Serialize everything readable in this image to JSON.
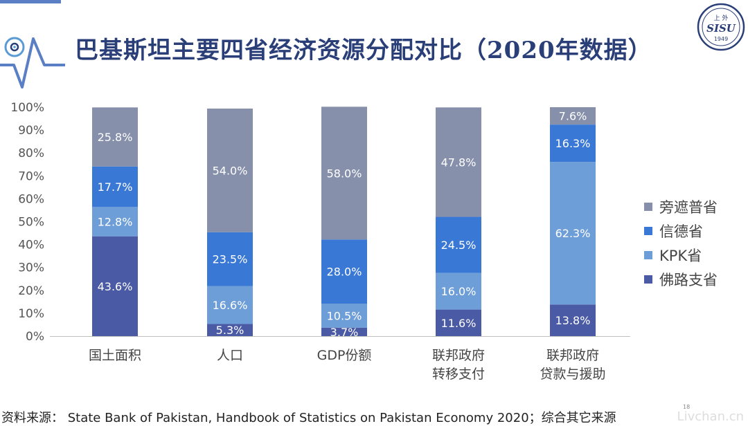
{
  "slide": {
    "title": "巴基斯坦主要四省经济资源分配对比（2020年数据）",
    "source": "资料来源： State Bank of Pakistan, Handbook of Statistics on Pakistan Economy 2020；综合其它来源",
    "page_number": "18",
    "logo": {
      "top_text": "上 外",
      "mid_text": "SISU",
      "year": "1949"
    },
    "watermark": "Livchan.cn"
  },
  "chart_data": {
    "type": "bar",
    "stacked": true,
    "percent": true,
    "title": "",
    "xlabel": "",
    "ylabel": "",
    "ylim": [
      0,
      100
    ],
    "yticks": [
      "0%",
      "10%",
      "20%",
      "30%",
      "40%",
      "50%",
      "60%",
      "70%",
      "80%",
      "90%",
      "100%"
    ],
    "grid": false,
    "legend_position": "right",
    "categories": [
      [
        "国土面积"
      ],
      [
        "人口"
      ],
      [
        "GDP份额"
      ],
      [
        "联邦政府",
        "转移支付"
      ],
      [
        "联邦政府",
        "贷款与援助"
      ]
    ],
    "series": [
      {
        "name": "佛路支省",
        "color": "#4a5aa5",
        "values": [
          43.6,
          5.3,
          3.7,
          11.6,
          13.8
        ],
        "labels": [
          "43.6%",
          "5.3%",
          "3.7%",
          "11.6%",
          "13.8%"
        ]
      },
      {
        "name": "KPK省",
        "color": "#6e9ed8",
        "values": [
          12.8,
          16.6,
          10.5,
          16.0,
          62.3
        ],
        "labels": [
          "12.8%",
          "16.6%",
          "10.5%",
          "16.0%",
          "62.3%"
        ]
      },
      {
        "name": "信德省",
        "color": "#3a78d6",
        "values": [
          17.7,
          23.5,
          28.0,
          24.5,
          16.3
        ],
        "labels": [
          "17.7%",
          "23.5%",
          "28.0%",
          "24.5%",
          "16.3%"
        ]
      },
      {
        "name": "旁遮普省",
        "color": "#8690ab",
        "values": [
          25.8,
          54.0,
          58.0,
          47.8,
          7.6
        ],
        "labels": [
          "25.8%",
          "54.0%",
          "58.0%",
          "47.8%",
          "7.6%"
        ]
      }
    ]
  }
}
